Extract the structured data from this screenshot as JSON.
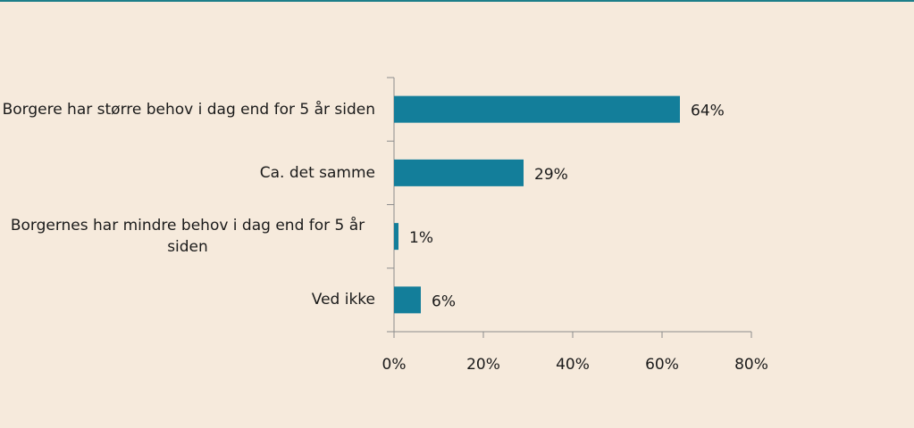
{
  "chart_data": {
    "type": "bar",
    "orientation": "horizontal",
    "categories": [
      "Borgere har større behov i dag end for 5 år siden",
      "Ca. det samme",
      "Borgernes har mindre behov i dag end for 5 år siden",
      "Ved ikke"
    ],
    "values": [
      64,
      29,
      1,
      6
    ],
    "value_labels": [
      "64%",
      "29%",
      "1%",
      "6%"
    ],
    "color": "#137e9a",
    "xlim": [
      0,
      80
    ],
    "xticks": [
      {
        "value": 0,
        "label": "0%"
      },
      {
        "value": 20,
        "label": "20%"
      },
      {
        "value": 40,
        "label": "40%"
      },
      {
        "value": 60,
        "label": "60%"
      },
      {
        "value": 80,
        "label": "80%"
      }
    ],
    "grid": false
  }
}
